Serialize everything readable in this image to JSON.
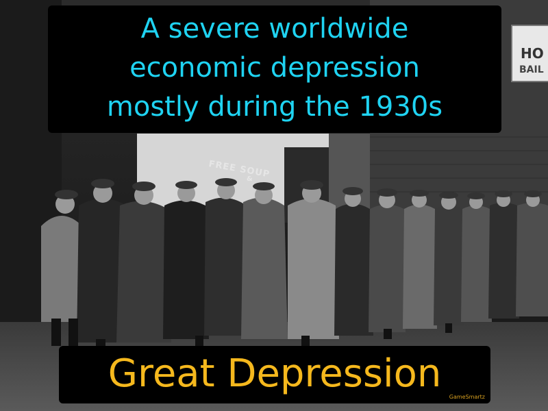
{
  "definition": {
    "line1": "A severe worldwide",
    "line2": "economic depression",
    "line3": "mostly during the 1930s",
    "color": "#1fd3f2"
  },
  "term": {
    "text": "Great Depression",
    "color": "#f5b81d"
  },
  "brand": "GameSmartz",
  "photo": {
    "sign_text": "FREE SOUP",
    "sign_amp": "&",
    "hotel_sign_line1": "HO",
    "hotel_sign_line2": "BAIL"
  }
}
